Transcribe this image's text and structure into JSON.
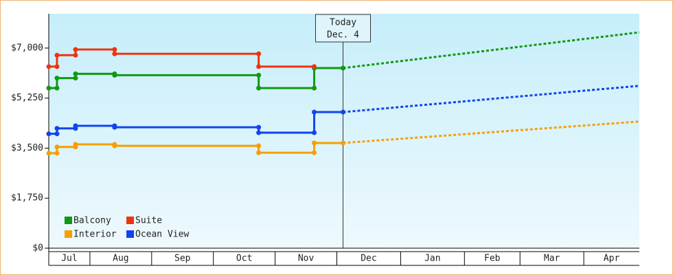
{
  "chart_data": {
    "type": "line",
    "xlim": [
      0,
      287
    ],
    "xticks": [
      20,
      50,
      80,
      110,
      140,
      171,
      202,
      229,
      260
    ],
    "months": [
      "Jul",
      "Aug",
      "Sep",
      "Oct",
      "Nov",
      "Dec",
      "Jan",
      "Feb",
      "Mar",
      "Apr"
    ],
    "ylim": [
      0,
      8200
    ],
    "yticks": [
      {
        "value": 0,
        "label": "$0"
      },
      {
        "value": 1750,
        "label": "$1,750"
      },
      {
        "value": 3500,
        "label": "$3,500"
      },
      {
        "value": 5250,
        "label": "$5,250"
      },
      {
        "value": 7000,
        "label": "$7,000"
      }
    ],
    "today_x": 143,
    "today_label": "Today",
    "today_date": "Dec. 4",
    "series": [
      {
        "name": "Balcony",
        "color": "#119911",
        "x": [
          0,
          4,
          4,
          13,
          13,
          32,
          32,
          102,
          102,
          129,
          129,
          143
        ],
        "values": [
          5600,
          5600,
          5950,
          5950,
          6100,
          6100,
          6050,
          6050,
          5600,
          5600,
          6300,
          6300
        ],
        "forecast": {
          "x": [
            143,
            287
          ],
          "values": [
            6300,
            7550
          ]
        }
      },
      {
        "name": "Suite",
        "color": "#ee3311",
        "x": [
          0,
          4,
          4,
          13,
          13,
          32,
          32,
          102,
          102,
          129
        ],
        "values": [
          6350,
          6350,
          6750,
          6750,
          6950,
          6950,
          6800,
          6800,
          6350,
          6350
        ]
      },
      {
        "name": "Interior",
        "color": "#f5a000",
        "x": [
          0,
          4,
          4,
          13,
          13,
          32,
          32,
          102,
          102,
          129,
          129,
          143
        ],
        "values": [
          3320,
          3320,
          3540,
          3540,
          3630,
          3630,
          3580,
          3580,
          3340,
          3340,
          3680,
          3680
        ],
        "forecast": {
          "x": [
            143,
            287
          ],
          "values": [
            3680,
            4430
          ]
        }
      },
      {
        "name": "Ocean View",
        "color": "#1144ee",
        "x": [
          0,
          4,
          4,
          13,
          13,
          32,
          32,
          102,
          102,
          129,
          129,
          143
        ],
        "values": [
          4000,
          4000,
          4190,
          4190,
          4280,
          4280,
          4230,
          4230,
          4040,
          4040,
          4760,
          4760
        ],
        "forecast": {
          "x": [
            143,
            287
          ],
          "values": [
            4760,
            5680
          ]
        }
      }
    ]
  }
}
